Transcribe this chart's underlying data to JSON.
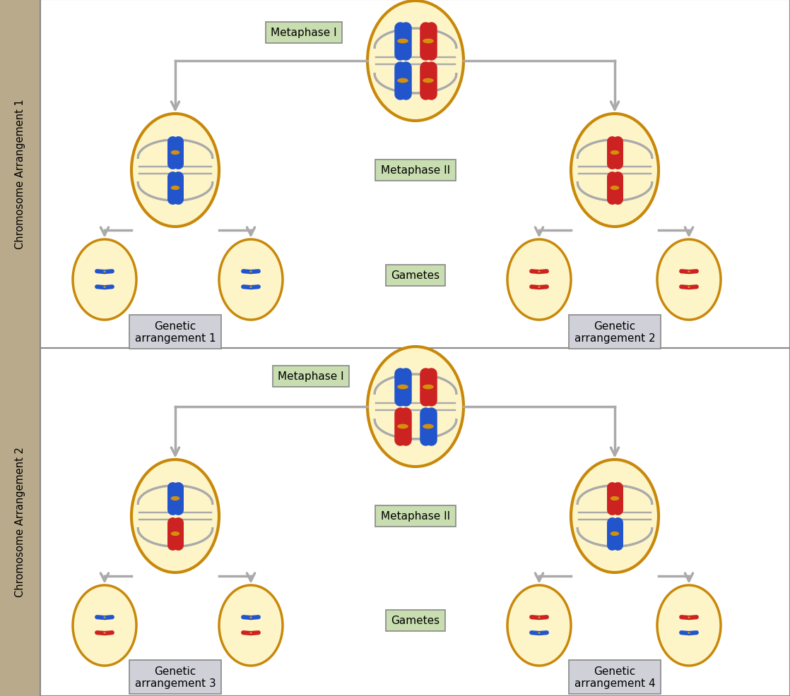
{
  "bg_color": "#ffffff",
  "sidebar_color": "#b8aa8a",
  "cell_fill": "#fdf5c8",
  "cell_edge": "#c8880a",
  "cell_edge2": "#d4920e",
  "spindle_color": "#aaaaaa",
  "blue_chrom": "#2255cc",
  "red_chrom": "#cc2222",
  "centromere_color": "#d4900a",
  "arrow_color": "#aaaaaa",
  "arrow_fill": "#cccccc",
  "label_bg_green": "#c8ddb0",
  "label_bg_gray": "#d0d0d8",
  "border_color": "#888888",
  "title1": "Chromosome Arrangement 1",
  "title2": "Chromosome Arrangement 2",
  "metaphase1_label": "Metaphase I",
  "metaphase2_label": "Metaphase II",
  "gametes_label": "Gametes",
  "genetic_labels": [
    "Genetic\narrangement 1",
    "Genetic\narrangement 2",
    "Genetic\narrangement 3",
    "Genetic\narrangement 4"
  ]
}
